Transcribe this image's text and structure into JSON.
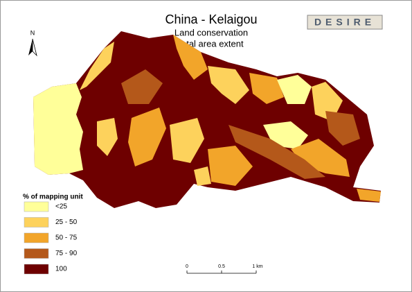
{
  "map": {
    "title": "China - Kelaigou",
    "subtitle": [
      "Land conservation",
      "total area extent"
    ],
    "north": "N",
    "logo": "DESIRE",
    "legend": {
      "title": "% of mapping unit",
      "items": [
        {
          "label": "<25",
          "color": "#ffff99"
        },
        {
          "label": "25 - 50",
          "color": "#fdd25c"
        },
        {
          "label": "50 - 75",
          "color": "#f2a52a"
        },
        {
          "label": "75 - 90",
          "color": "#b4581a"
        },
        {
          "label": "100",
          "color": "#6e0000"
        }
      ]
    },
    "scale_bar": {
      "labels": [
        "0",
        "0.5",
        "1 km"
      ]
    }
  }
}
